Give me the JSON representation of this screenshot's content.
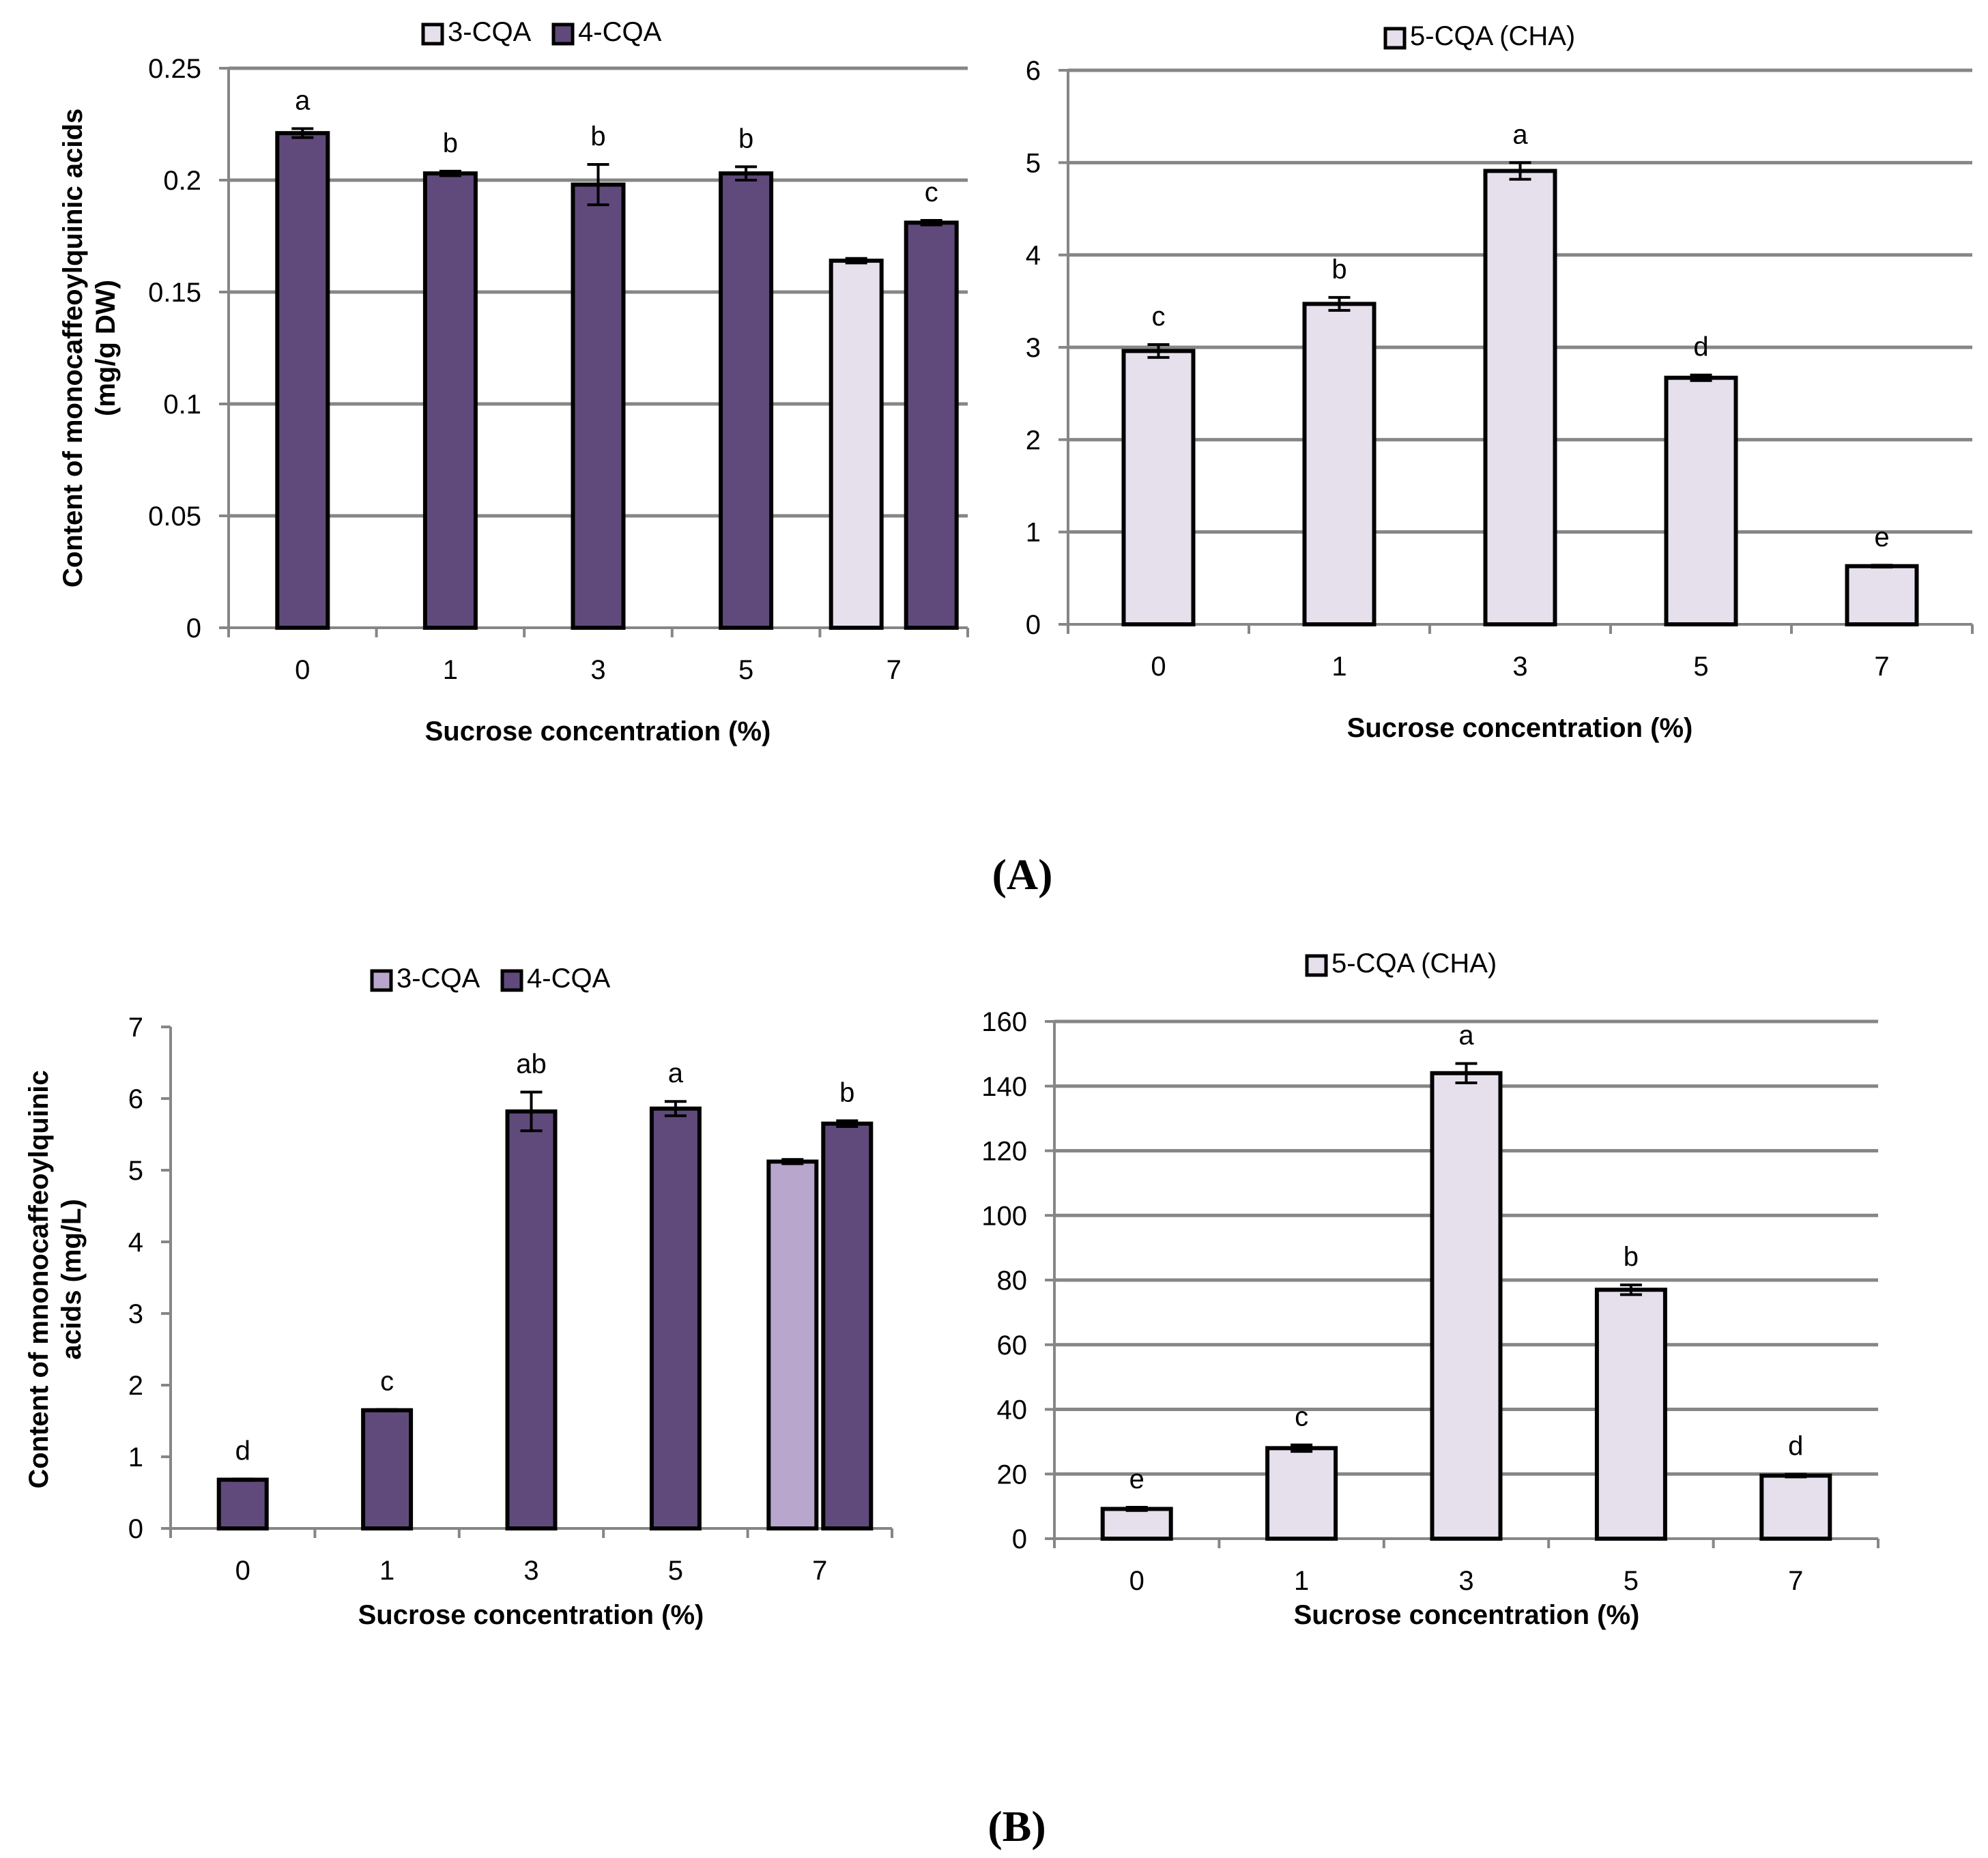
{
  "figure": {
    "panel_labels": [
      "(A)",
      "(B)"
    ]
  },
  "colors": {
    "cqa3": "#E6E0EC",
    "cqa4": "#604A7B",
    "cqa3_alt": "#B9A6CC",
    "cqa4_alt": "#604A7B",
    "cha": "#E6E0EC",
    "grid": "#868686",
    "axis": "#868686",
    "outline": "#000000"
  },
  "chart_data": [
    {
      "id": "A-left",
      "type": "bar",
      "categories": [
        "0",
        "1",
        "3",
        "5",
        "7"
      ],
      "xlabel": "Sucrose concentration (%)",
      "ylabel": "Content of monocaffeoylquinic acids (mg/g DW)",
      "ylabel_lines": [
        "Content of monocaffeoylquinic acids",
        "(mg/g DW)"
      ],
      "ylim": [
        0,
        0.25
      ],
      "yticks": [
        0,
        0.05,
        0.1,
        0.15,
        0.2,
        0.25
      ],
      "ytick_labels": [
        "0",
        "0.05",
        "0.1",
        "0.15",
        "0.2",
        "0.25"
      ],
      "grid": true,
      "legend": "top",
      "series": [
        {
          "name": "3-CQA",
          "color_key": "cqa3",
          "values": [
            null,
            null,
            null,
            null,
            0.164
          ],
          "errors": [
            null,
            null,
            null,
            null,
            0.001
          ],
          "letters": [
            null,
            null,
            null,
            null,
            null
          ]
        },
        {
          "name": "4-CQA",
          "color_key": "cqa4",
          "values": [
            0.221,
            0.203,
            0.198,
            0.203,
            0.181
          ],
          "errors": [
            0.002,
            0.001,
            0.009,
            0.003,
            0.001
          ],
          "letters": [
            "a",
            "b",
            "b",
            "b",
            "c"
          ]
        }
      ]
    },
    {
      "id": "A-right",
      "type": "bar",
      "categories": [
        "0",
        "1",
        "3",
        "5",
        "7"
      ],
      "xlabel": "Sucrose concentration (%)",
      "ylabel": "",
      "ylabel_lines": [],
      "ylim": [
        0,
        6
      ],
      "yticks": [
        0,
        1,
        2,
        3,
        4,
        5,
        6
      ],
      "ytick_labels": [
        "0",
        "1",
        "2",
        "3",
        "4",
        "5",
        "6"
      ],
      "grid": true,
      "legend": "top",
      "series": [
        {
          "name": "5-CQA (CHA)",
          "color_key": "cha",
          "values": [
            2.96,
            3.47,
            4.91,
            2.67,
            0.63
          ],
          "errors": [
            0.07,
            0.07,
            0.09,
            0.03,
            0.01
          ],
          "letters": [
            "c",
            "b",
            "a",
            "d",
            "e"
          ]
        }
      ]
    },
    {
      "id": "B-left",
      "type": "bar",
      "categories": [
        "0",
        "1",
        "3",
        "5",
        "7"
      ],
      "xlabel": "Sucrose concentration (%)",
      "ylabel": "Content of mnonocaffeoylquinic acids (mg/L)",
      "ylabel_lines": [
        "Content of mnonocaffeoylquinic",
        "acids (mg/L)"
      ],
      "ylim": [
        0,
        7
      ],
      "yticks": [
        0,
        1,
        2,
        3,
        4,
        5,
        6,
        7
      ],
      "ytick_labels": [
        "0",
        "1",
        "2",
        "3",
        "4",
        "5",
        "6",
        "7"
      ],
      "grid": false,
      "legend": "top",
      "series": [
        {
          "name": "3-CQA",
          "color_key": "cqa3_alt",
          "values": [
            null,
            null,
            null,
            null,
            5.12
          ],
          "errors": [
            null,
            null,
            null,
            null,
            0.03
          ],
          "letters": [
            null,
            null,
            null,
            null,
            null
          ]
        },
        {
          "name": "4-CQA",
          "color_key": "cqa4_alt",
          "values": [
            0.68,
            1.65,
            5.82,
            5.86,
            5.65
          ],
          "errors": [
            0.01,
            0.01,
            0.27,
            0.1,
            0.04
          ],
          "letters": [
            "d",
            "c",
            "ab",
            "a",
            "b"
          ]
        }
      ]
    },
    {
      "id": "B-right",
      "type": "bar",
      "categories": [
        "0",
        "1",
        "3",
        "5",
        "7"
      ],
      "xlabel": "Sucrose concentration (%)",
      "ylabel": "",
      "ylabel_lines": [],
      "ylim": [
        0,
        160
      ],
      "yticks": [
        0,
        20,
        40,
        60,
        80,
        100,
        120,
        140,
        160
      ],
      "ytick_labels": [
        "0",
        "20",
        "40",
        "60",
        "80",
        "100",
        "120",
        "140",
        "160"
      ],
      "grid": true,
      "legend": "top",
      "series": [
        {
          "name": "5-CQA (CHA)",
          "color_key": "cha",
          "values": [
            9.2,
            28.0,
            144.0,
            77.0,
            19.5
          ],
          "errors": [
            0.5,
            1.0,
            3.0,
            1.5,
            0.4
          ],
          "letters": [
            "e",
            "c",
            "a",
            "b",
            "d"
          ]
        }
      ]
    }
  ]
}
